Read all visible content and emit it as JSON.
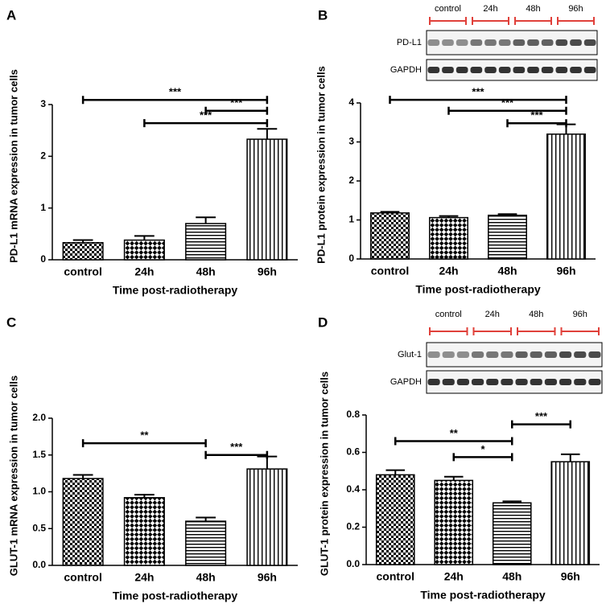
{
  "chart_data": [
    {
      "panel": "A",
      "type": "bar",
      "x_label": "Time post-radiotherapy",
      "y_label": "PD-L1 mRNA expression in tumor cells",
      "categories": [
        "control",
        "24h",
        "48h",
        "96h"
      ],
      "values": [
        0.33,
        0.38,
        0.7,
        2.33
      ],
      "errors": [
        0.05,
        0.08,
        0.12,
        0.2
      ],
      "ylim": [
        0,
        3
      ],
      "yticks": [
        0,
        1,
        2,
        3
      ],
      "color": "#000000",
      "annotations": [
        {
          "text": "***",
          "y": 3.09
        },
        {
          "text": "***",
          "y": 2.88
        },
        {
          "text": "***",
          "y": 2.64
        }
      ]
    },
    {
      "panel": "B",
      "type": "bar",
      "x_label": "Time post-radiotherapy",
      "y_label": "PD-L1 protein expression in tumor cells",
      "categories": [
        "control",
        "24h",
        "48h",
        "96h"
      ],
      "values": [
        1.18,
        1.06,
        1.12,
        3.2
      ],
      "errors": [
        0.03,
        0.04,
        0.03,
        0.25
      ],
      "ylim": [
        0,
        4
      ],
      "yticks": [
        0,
        1,
        2,
        3,
        4
      ],
      "color": "#000000",
      "annotations": [
        {
          "text": "***",
          "y": 4.08
        },
        {
          "text": "***",
          "y": 3.8
        },
        {
          "text": "***",
          "y": 3.48
        }
      ],
      "blot": {
        "groups": [
          "control",
          "24h",
          "48h",
          "96h"
        ],
        "rows": [
          "PD-L1",
          "GAPDH"
        ]
      }
    },
    {
      "panel": "C",
      "type": "bar",
      "x_label": "Time post-radiotherapy",
      "y_label": "GLUT-1 mRNA expression in tumor cells",
      "categories": [
        "control",
        "24h",
        "48h",
        "96h"
      ],
      "values": [
        1.18,
        0.92,
        0.6,
        1.31
      ],
      "errors": [
        0.05,
        0.04,
        0.05,
        0.17
      ],
      "ylim": [
        0,
        2
      ],
      "yticks": [
        {
          "value": 0,
          "label": "0.0"
        },
        0.5,
        {
          "value": 1,
          "label": "1.0"
        },
        1.5,
        {
          "value": 2,
          "label": "2.0"
        }
      ],
      "color": "#000000",
      "annotations": [
        {
          "text": "**",
          "y": 1.66
        },
        {
          "text": "***",
          "y": 1.5
        }
      ]
    },
    {
      "panel": "D",
      "type": "bar",
      "x_label": "Time post-radiotherapy",
      "y_label": "GLUT-1 protein expression in tumor cells",
      "categories": [
        "control",
        "24h",
        "48h",
        "96h"
      ],
      "values": [
        0.48,
        0.45,
        0.33,
        0.55
      ],
      "errors": [
        0.025,
        0.02,
        0.008,
        0.04
      ],
      "ylim": [
        0,
        0.8
      ],
      "yticks": [
        {
          "value": 0,
          "label": "0.0"
        },
        0.2,
        0.4,
        0.6,
        0.8
      ],
      "color": "#000000",
      "annotations": [
        {
          "text": "**",
          "y": 0.66
        },
        {
          "text": "*",
          "y": 0.575
        },
        {
          "text": "***",
          "y": 0.75
        }
      ],
      "blot": {
        "groups": [
          "control",
          "24h",
          "48h",
          "96h"
        ],
        "rows": [
          "Glut-1",
          "GAPDH"
        ]
      }
    }
  ]
}
